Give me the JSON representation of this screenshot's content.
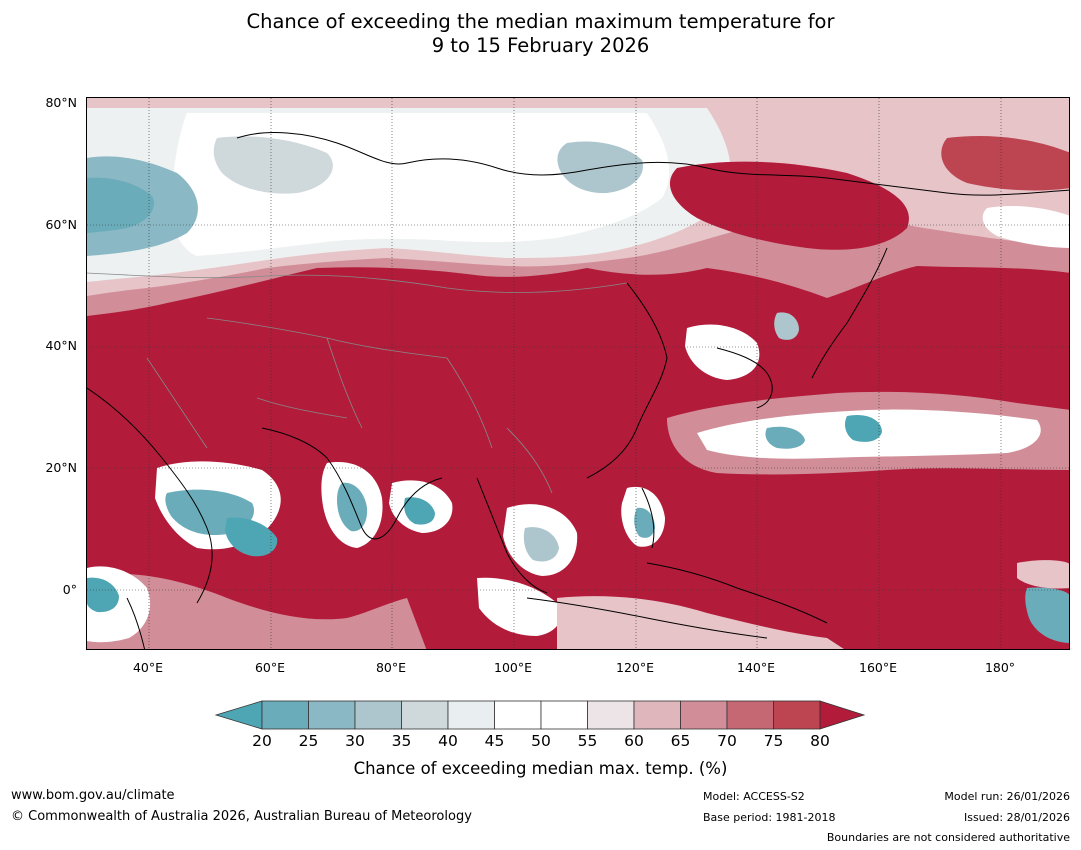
{
  "title": {
    "line1": "Chance of exceeding the median maximum temperature for",
    "line2": "9 to 15 February 2026"
  },
  "map": {
    "lat_labels": [
      "80°N",
      "60°N",
      "40°N",
      "20°N",
      "0°"
    ],
    "lon_labels": [
      "40°E",
      "60°E",
      "80°E",
      "100°E",
      "120°E",
      "140°E",
      "160°E",
      "180°"
    ]
  },
  "colorbar": {
    "ticks": [
      "20",
      "25",
      "30",
      "35",
      "40",
      "45",
      "50",
      "55",
      "60",
      "65",
      "70",
      "75",
      "80"
    ],
    "colors": [
      "#4ea6b4",
      "#6aacba",
      "#8ab8c4",
      "#adc6cd",
      "#cfd8db",
      "#e9eef0",
      "#ffffff",
      "#ffffff",
      "#ece4e6",
      "#dfb6bc",
      "#d18e98",
      "#c66874",
      "#bd4552",
      "#b21c3a"
    ],
    "label": "Chance of exceeding median max. temp. (%)"
  },
  "footer": {
    "website": "www.bom.gov.au/climate",
    "copyright": "© Commonwealth of Australia 2026, Australian Bureau of Meteorology",
    "model": "Model: ACCESS-S2",
    "base_period": "Base period: 1981-2018",
    "model_run": "Model run: 26/01/2026",
    "issued": "Issued: 28/01/2026",
    "boundaries": "Boundaries are not considered authoritative"
  }
}
